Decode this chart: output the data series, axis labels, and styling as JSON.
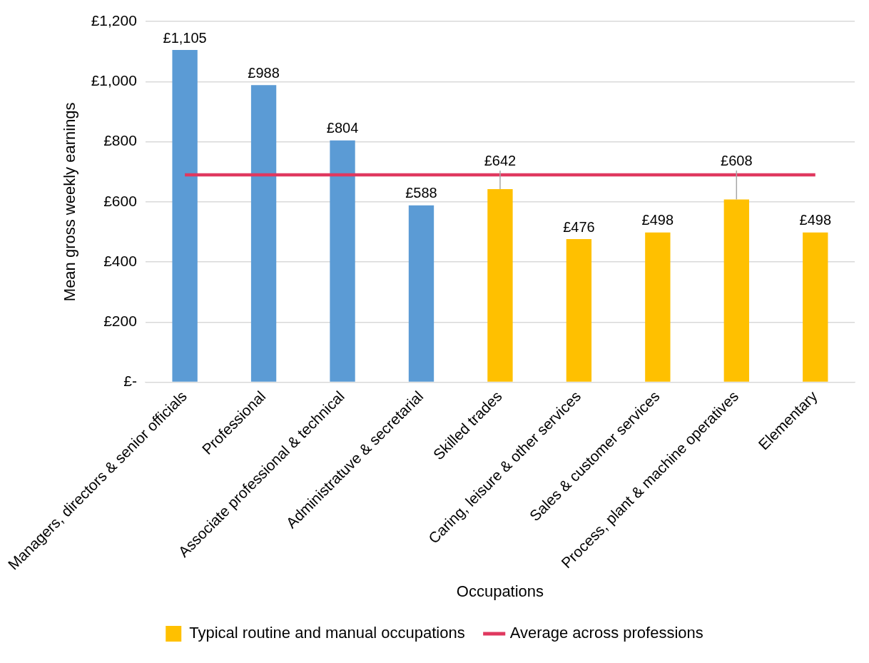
{
  "chart_data": {
    "type": "bar",
    "xlabel": "Occupations",
    "ylabel": "Mean gross weekly earnings",
    "categories": [
      "Managers, directors & senior officials",
      "Professional",
      "Associate professional & technical",
      "Administratuve & secretarial",
      "Skilled trades",
      "Caring, leisure & other services",
      "Sales & customer services",
      "Process, plant & machine operatives",
      "Elementary"
    ],
    "series": [
      {
        "color": "#5b9bd5",
        "values": [
          1105,
          988,
          804,
          588,
          null,
          null,
          null,
          null,
          null
        ],
        "value_labels": [
          "£1,105",
          "£988",
          "£804",
          "£588",
          null,
          null,
          null,
          null,
          null
        ]
      },
      {
        "name": "Typical routine and manual occupations",
        "color": "#ffc000",
        "values": [
          null,
          null,
          null,
          null,
          642,
          476,
          498,
          608,
          498
        ],
        "value_labels": [
          null,
          null,
          null,
          null,
          "£642",
          "£476",
          "£498",
          "£608",
          "£498"
        ]
      },
      {
        "name": "Average across professions",
        "type": "line",
        "color": "#e0385f",
        "marker": "none",
        "values": [
          690,
          690,
          690,
          690,
          690,
          690,
          690,
          690,
          690
        ]
      }
    ],
    "stacked": true,
    "ylim": [
      0,
      1200
    ],
    "yticks": [
      {
        "value": 0,
        "label": "£-"
      },
      {
        "value": 200,
        "label": "£200"
      },
      {
        "value": 400,
        "label": "£400"
      },
      {
        "value": 600,
        "label": "£600"
      },
      {
        "value": 800,
        "label": "£800"
      },
      {
        "value": 1000,
        "label": "£1,000"
      },
      {
        "value": 1200,
        "label": "£1,200"
      }
    ],
    "grid": "y",
    "legend": "bottom"
  }
}
